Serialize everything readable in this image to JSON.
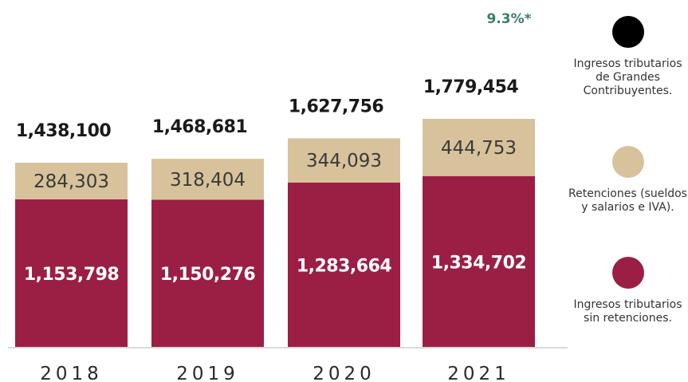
{
  "chart_data": {
    "type": "bar",
    "stacked": true,
    "categories": [
      "2018",
      "2019",
      "2020",
      "2021"
    ],
    "series": [
      {
        "name": "Ingresos tributarios sin retenciones.",
        "values": [
          1153798,
          1150276,
          1283664,
          1334702
        ],
        "color": "#9b1f44",
        "value_labels": [
          "1,153,798",
          "1,150,276",
          "1,283,664",
          "1,334,702"
        ]
      },
      {
        "name": "Retenciones (sueldos y salarios e IVA).",
        "values": [
          284303,
          318404,
          344093,
          444753
        ],
        "color": "#d8c29b",
        "value_labels": [
          "284,303",
          "318,404",
          "344,093",
          "444,753"
        ]
      }
    ],
    "totals": [
      1438100,
      1468681,
      1627756,
      1779454
    ],
    "total_labels": [
      "1,438,100",
      "1,468,681",
      "1,627,756",
      "1,779,454"
    ],
    "annotation": {
      "category": "2021",
      "text": "9.3%*"
    },
    "grid": false
  },
  "legend": [
    {
      "color": "#000000",
      "label": "Ingresos tributarios de Grandes Contribuyentes."
    },
    {
      "color": "#d8c29b",
      "label": "Retenciones (sueldos y salarios e IVA)."
    },
    {
      "color": "#9b1f44",
      "label": "Ingresos tributarios sin retenciones."
    }
  ],
  "colors": {
    "growth": "#3d7a6c",
    "baseline": "#d9d9d9"
  }
}
